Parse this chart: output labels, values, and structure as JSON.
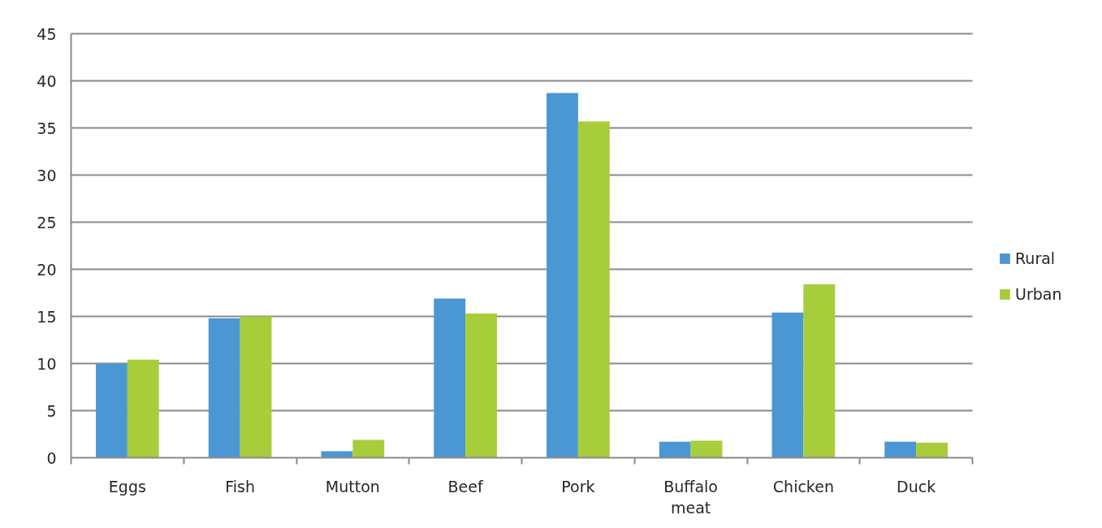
{
  "chart_data": {
    "type": "bar",
    "categories": [
      "Eggs",
      "Fish",
      "Mutton",
      "Beef",
      "Pork",
      "Buffalo meat",
      "Chicken",
      "Duck"
    ],
    "series": [
      {
        "name": "Rural",
        "color": "#4b97d3",
        "values": [
          10.0,
          14.8,
          0.7,
          16.9,
          38.7,
          1.7,
          15.4,
          1.7
        ]
      },
      {
        "name": "Urban",
        "color": "#a7cd3b",
        "values": [
          10.4,
          15.0,
          1.9,
          15.3,
          35.7,
          1.8,
          18.4,
          1.6
        ]
      }
    ],
    "ylim": [
      0,
      45
    ],
    "yticks": [
      0,
      5,
      10,
      15,
      20,
      25,
      30,
      35,
      40,
      45
    ],
    "grid": "y",
    "legend": "right"
  }
}
